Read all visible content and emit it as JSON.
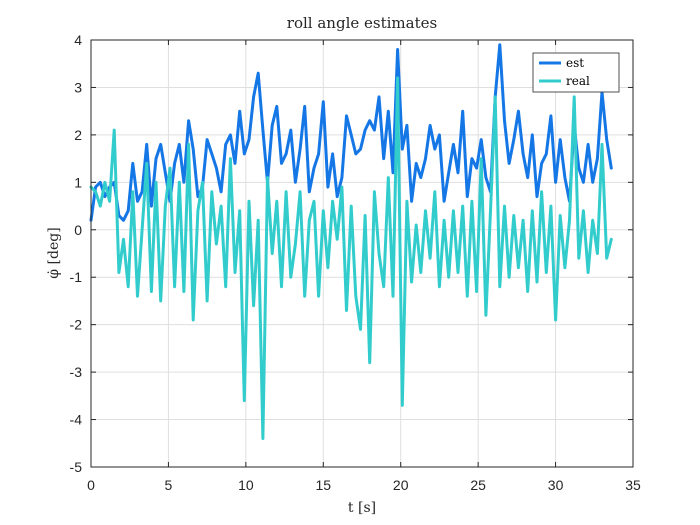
{
  "chart_data": {
    "type": "line",
    "title": "roll angle estimates",
    "xlabel": "t [s]",
    "ylabel": "φ̇ [deg]",
    "xlim": [
      0,
      35
    ],
    "ylim": [
      -5,
      4
    ],
    "xticks": [
      0,
      5,
      10,
      15,
      20,
      25,
      30,
      35
    ],
    "yticks": [
      -5,
      -4,
      -3,
      -2,
      -1,
      0,
      1,
      2,
      3,
      4
    ],
    "grid": true,
    "legend_position": "top-right",
    "series": [
      {
        "name": "est",
        "color": "#1577e6",
        "x": [
          0.0,
          0.3,
          0.6,
          0.9,
          1.2,
          1.5,
          1.8,
          2.1,
          2.4,
          2.7,
          3.0,
          3.3,
          3.6,
          3.9,
          4.2,
          4.5,
          4.8,
          5.1,
          5.4,
          5.7,
          6.0,
          6.3,
          6.6,
          6.9,
          7.2,
          7.5,
          7.8,
          8.1,
          8.4,
          8.7,
          9.0,
          9.3,
          9.6,
          9.9,
          10.2,
          10.5,
          10.8,
          11.1,
          11.4,
          11.7,
          12.0,
          12.3,
          12.6,
          12.9,
          13.2,
          13.5,
          13.8,
          14.1,
          14.4,
          14.7,
          15.0,
          15.3,
          15.6,
          15.9,
          16.2,
          16.5,
          16.8,
          17.1,
          17.4,
          17.7,
          18.0,
          18.3,
          18.6,
          18.9,
          19.2,
          19.5,
          19.8,
          20.1,
          20.4,
          20.7,
          21.0,
          21.3,
          21.6,
          21.9,
          22.2,
          22.5,
          22.8,
          23.1,
          23.4,
          23.7,
          24.0,
          24.3,
          24.6,
          24.9,
          25.2,
          25.5,
          25.8,
          26.1,
          26.4,
          26.7,
          27.0,
          27.3,
          27.6,
          27.9,
          28.2,
          28.5,
          28.8,
          29.1,
          29.4,
          29.7,
          30.0,
          30.3,
          30.6,
          30.9,
          31.2,
          31.5,
          31.8,
          32.1,
          32.4,
          32.7,
          33.0,
          33.3,
          33.6
        ],
        "y": [
          0.2,
          0.9,
          1.0,
          0.7,
          0.9,
          1.0,
          0.3,
          0.2,
          0.4,
          1.4,
          0.6,
          0.8,
          1.8,
          0.5,
          1.5,
          1.8,
          1.2,
          0.6,
          1.4,
          1.8,
          1.0,
          2.3,
          1.7,
          0.7,
          0.9,
          1.9,
          1.6,
          1.3,
          0.8,
          1.8,
          2.0,
          1.4,
          2.5,
          1.6,
          1.9,
          2.8,
          3.3,
          2.1,
          1.0,
          2.2,
          2.6,
          1.4,
          1.6,
          2.1,
          1.0,
          1.7,
          2.6,
          0.8,
          1.3,
          1.6,
          2.7,
          0.9,
          1.6,
          0.7,
          1.1,
          2.4,
          2.0,
          1.6,
          1.7,
          2.1,
          2.3,
          2.1,
          2.8,
          1.5,
          2.5,
          1.2,
          3.8,
          1.7,
          2.2,
          0.6,
          1.4,
          1.1,
          1.5,
          2.2,
          1.7,
          2.0,
          0.6,
          1.2,
          1.8,
          1.2,
          2.5,
          0.7,
          1.5,
          1.3,
          1.9,
          1.1,
          0.8,
          2.8,
          3.9,
          2.3,
          1.4,
          1.9,
          2.5,
          1.6,
          1.1,
          2.0,
          0.7,
          1.4,
          1.6,
          2.4,
          1.0,
          1.9,
          1.1,
          0.6,
          2.2,
          1.3,
          1.0,
          1.8,
          1.0,
          1.5,
          2.9,
          1.9,
          1.3
        ]
      },
      {
        "name": "real",
        "color": "#33cccc",
        "x": [
          0.0,
          0.3,
          0.6,
          0.9,
          1.2,
          1.5,
          1.8,
          2.1,
          2.4,
          2.7,
          3.0,
          3.3,
          3.6,
          3.9,
          4.2,
          4.5,
          4.8,
          5.1,
          5.4,
          5.7,
          6.0,
          6.3,
          6.6,
          6.9,
          7.2,
          7.5,
          7.8,
          8.1,
          8.4,
          8.7,
          9.0,
          9.3,
          9.6,
          9.9,
          10.2,
          10.5,
          10.8,
          11.1,
          11.4,
          11.7,
          12.0,
          12.3,
          12.6,
          12.9,
          13.2,
          13.5,
          13.8,
          14.1,
          14.4,
          14.7,
          15.0,
          15.3,
          15.6,
          15.9,
          16.2,
          16.5,
          16.8,
          17.1,
          17.4,
          17.7,
          18.0,
          18.3,
          18.6,
          18.9,
          19.2,
          19.5,
          19.8,
          20.1,
          20.4,
          20.7,
          21.0,
          21.3,
          21.6,
          21.9,
          22.2,
          22.5,
          22.8,
          23.1,
          23.4,
          23.7,
          24.0,
          24.3,
          24.6,
          24.9,
          25.2,
          25.5,
          25.8,
          26.1,
          26.4,
          26.7,
          27.0,
          27.3,
          27.6,
          27.9,
          28.2,
          28.5,
          28.8,
          29.1,
          29.4,
          29.7,
          30.0,
          30.3,
          30.6,
          30.9,
          31.2,
          31.5,
          31.8,
          32.1,
          32.4,
          32.7,
          33.0,
          33.3,
          33.6
        ],
        "y": [
          0.9,
          0.8,
          0.5,
          1.0,
          0.6,
          2.1,
          -0.9,
          -0.2,
          -1.2,
          0.8,
          -1.4,
          0.0,
          1.4,
          -1.3,
          1.0,
          -1.5,
          0.5,
          1.3,
          -1.2,
          1.0,
          -1.3,
          1.8,
          -1.9,
          0.4,
          1.0,
          -1.5,
          0.8,
          -0.3,
          0.5,
          -1.2,
          1.5,
          -0.9,
          0.4,
          -3.6,
          0.6,
          -1.6,
          0.2,
          -4.4,
          1.1,
          -0.5,
          0.6,
          -1.2,
          0.8,
          -1.0,
          -0.3,
          0.8,
          -1.4,
          0.2,
          0.6,
          -1.4,
          0.4,
          -0.8,
          0.6,
          -0.2,
          0.9,
          -1.7,
          0.5,
          -1.4,
          -2.1,
          0.3,
          -2.8,
          0.8,
          -0.5,
          -1.2,
          1.1,
          -1.4,
          3.2,
          -3.7,
          0.6,
          -1.1,
          0.1,
          -0.9,
          0.4,
          -0.6,
          0.8,
          -1.2,
          0.2,
          -1.0,
          0.4,
          -0.9,
          0.5,
          -1.4,
          0.6,
          -1.3,
          1.5,
          -1.8,
          0.4,
          2.8,
          -1.2,
          0.5,
          -1.0,
          0.3,
          -0.8,
          0.2,
          -1.3,
          0.4,
          -1.1,
          0.8,
          -0.9,
          0.5,
          -1.9,
          0.3,
          -0.8,
          0.2,
          2.8,
          -0.6,
          0.4,
          -0.9,
          0.2,
          -0.5,
          1.8,
          -0.6,
          -0.2
        ]
      }
    ]
  }
}
